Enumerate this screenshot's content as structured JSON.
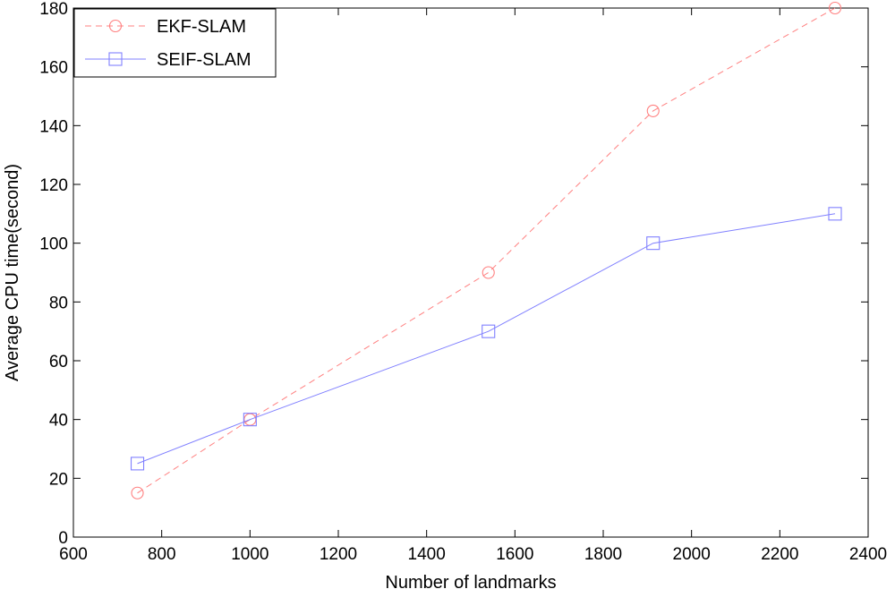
{
  "chart_data": {
    "type": "line",
    "title": "",
    "xlabel": "Number of landmarks",
    "ylabel": "Average CPU time(second)",
    "xlim": [
      600,
      2400
    ],
    "ylim": [
      0,
      180
    ],
    "xticks": [
      600,
      800,
      1000,
      1200,
      1400,
      1600,
      1800,
      2000,
      2200,
      2400
    ],
    "yticks": [
      0,
      20,
      40,
      60,
      80,
      100,
      120,
      140,
      160,
      180
    ],
    "grid": false,
    "legend_position": "top-left",
    "series": [
      {
        "name": "EKF-SLAM",
        "color": "#ff8080",
        "line_style": "dashed",
        "marker": "circle",
        "x": [
          745,
          1000,
          1540,
          1913,
          2325
        ],
        "y": [
          15,
          40,
          90,
          145,
          180
        ]
      },
      {
        "name": "SEIF-SLAM",
        "color": "#8080ff",
        "line_style": "solid",
        "marker": "square",
        "x": [
          745,
          1000,
          1540,
          1913,
          2325
        ],
        "y": [
          25,
          40,
          70,
          100,
          110
        ]
      }
    ]
  }
}
